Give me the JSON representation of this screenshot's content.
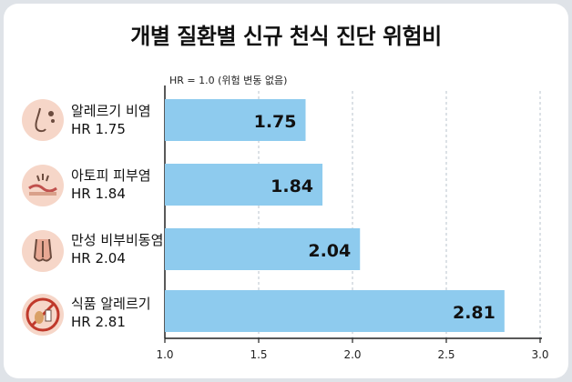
{
  "chart_data": {
    "type": "bar",
    "orientation": "horizontal",
    "title": "개별 질환별 신규 천식 진단 위험비",
    "reference_note": "HR = 1.0 (위험 변동 없음)",
    "categories": [
      {
        "name": "알레르기 비염",
        "hr_label": "HR 1.75",
        "icon": "nose-icon"
      },
      {
        "name": "아토피 피부염",
        "hr_label": "HR 1.84",
        "icon": "skin-icon"
      },
      {
        "name": "만성 비부비동염",
        "hr_label": "HR 2.04",
        "icon": "sinus-icon"
      },
      {
        "name": "식품 알레르기",
        "hr_label": "HR 2.81",
        "icon": "food-allergy-icon"
      }
    ],
    "values": [
      1.75,
      1.84,
      2.04,
      2.81
    ],
    "value_labels": [
      "1.75",
      "1.84",
      "2.04",
      "2.81"
    ],
    "xlim": [
      1.0,
      3.0
    ],
    "xticks": [
      "1.0",
      "1.5",
      "2.0",
      "2.5",
      "3.0"
    ],
    "bar_color": "#8ecbee",
    "grid": "vertical dashed",
    "legend": "none"
  }
}
